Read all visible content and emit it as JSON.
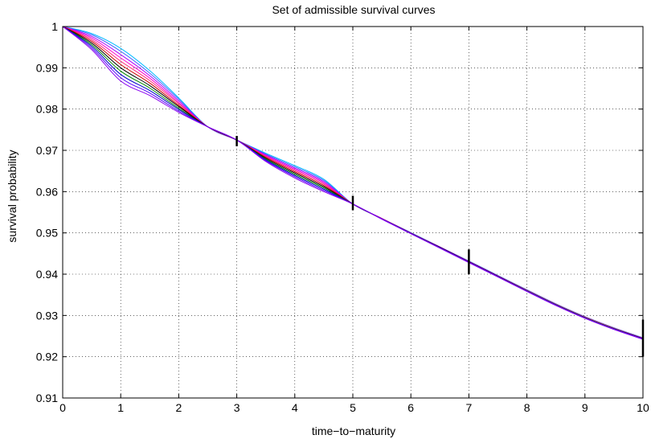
{
  "chart_data": {
    "type": "line",
    "title": "Set of admissible survival curves",
    "xlabel": "time−to−maturity",
    "ylabel": "survival probability",
    "xlim": [
      0,
      10
    ],
    "ylim": [
      0.91,
      1
    ],
    "xticks": [
      0,
      1,
      2,
      3,
      4,
      5,
      6,
      7,
      8,
      9,
      10
    ],
    "yticks": [
      0.91,
      0.92,
      0.93,
      0.94,
      0.95,
      0.96,
      0.97,
      0.98,
      0.99,
      1
    ],
    "xtick_labels": [
      "0",
      "1",
      "2",
      "3",
      "4",
      "5",
      "6",
      "7",
      "8",
      "9",
      "10"
    ],
    "ytick_labels": [
      "0.91",
      "0.92",
      "0.93",
      "0.94",
      "0.95",
      "0.96",
      "0.97",
      "0.98",
      "0.99",
      "1"
    ],
    "grid": true,
    "grid_style": "dotted",
    "x": [
      0,
      0.5,
      1,
      1.5,
      2,
      2.5,
      3,
      3.5,
      4,
      4.5,
      5,
      5.5,
      6,
      6.5,
      7,
      7.5,
      8,
      8.5,
      9,
      9.5,
      10
    ],
    "series": [
      {
        "color": "#00b8ff",
        "values": [
          1,
          0.9983,
          0.9947,
          0.9893,
          0.9827,
          0.9757,
          0.9725,
          0.9693,
          0.9663,
          0.963,
          0.957,
          0.9535,
          0.9501,
          0.9466,
          0.9432,
          0.9397,
          0.9362,
          0.9328,
          0.9297,
          0.927,
          0.9246
        ]
      },
      {
        "color": "#4466ff",
        "values": [
          1,
          0.998,
          0.994,
          0.9887,
          0.9824,
          0.9757,
          0.9725,
          0.9691,
          0.966,
          0.9627,
          0.957,
          0.9535,
          0.95,
          0.9466,
          0.9431,
          0.9396,
          0.9362,
          0.9328,
          0.9297,
          0.927,
          0.9245
        ]
      },
      {
        "color": "#aa00ff",
        "values": [
          1,
          0.9976,
          0.9932,
          0.9881,
          0.982,
          0.9757,
          0.9725,
          0.9689,
          0.9657,
          0.9624,
          0.957,
          0.9535,
          0.95,
          0.9466,
          0.9431,
          0.9396,
          0.9361,
          0.9327,
          0.9296,
          0.9269,
          0.9245
        ]
      },
      {
        "color": "#ff00cc",
        "values": [
          1,
          0.9972,
          0.9924,
          0.9875,
          0.9816,
          0.9757,
          0.9725,
          0.9687,
          0.9654,
          0.9621,
          0.957,
          0.9535,
          0.95,
          0.9465,
          0.9431,
          0.9396,
          0.9361,
          0.9327,
          0.9296,
          0.9269,
          0.9245
        ]
      },
      {
        "color": "#ff2277",
        "values": [
          1,
          0.9968,
          0.9916,
          0.9869,
          0.9813,
          0.9757,
          0.9725,
          0.9685,
          0.9651,
          0.9618,
          0.957,
          0.9535,
          0.95,
          0.9465,
          0.943,
          0.9395,
          0.9361,
          0.9327,
          0.9296,
          0.9269,
          0.9244
        ]
      },
      {
        "color": "#cc0000",
        "values": [
          1,
          0.9964,
          0.9908,
          0.9863,
          0.9809,
          0.9757,
          0.9725,
          0.9683,
          0.9648,
          0.9615,
          0.957,
          0.9534,
          0.9499,
          0.9465,
          0.943,
          0.9395,
          0.936,
          0.9326,
          0.9295,
          0.9268,
          0.9244
        ]
      },
      {
        "color": "#000000",
        "values": [
          1,
          0.996,
          0.99,
          0.9857,
          0.9806,
          0.9757,
          0.9725,
          0.9681,
          0.9645,
          0.9612,
          0.957,
          0.9534,
          0.9499,
          0.9465,
          0.943,
          0.9395,
          0.936,
          0.9326,
          0.9295,
          0.9268,
          0.9244
        ]
      },
      {
        "color": "#008800",
        "values": [
          1,
          0.9956,
          0.9892,
          0.9851,
          0.9802,
          0.9757,
          0.9725,
          0.9679,
          0.9642,
          0.9609,
          0.957,
          0.9534,
          0.9499,
          0.9464,
          0.9429,
          0.9394,
          0.936,
          0.9326,
          0.9295,
          0.9268,
          0.9243
        ]
      },
      {
        "color": "#0000cc",
        "values": [
          1,
          0.9952,
          0.9884,
          0.9845,
          0.9799,
          0.9757,
          0.9725,
          0.9677,
          0.9639,
          0.9606,
          0.957,
          0.9534,
          0.9499,
          0.9464,
          0.9429,
          0.9394,
          0.9359,
          0.9325,
          0.9294,
          0.9267,
          0.9243
        ]
      },
      {
        "color": "#5500ff",
        "values": [
          1,
          0.9948,
          0.9876,
          0.9839,
          0.9795,
          0.9757,
          0.9725,
          0.9675,
          0.9636,
          0.9603,
          0.957,
          0.9534,
          0.9498,
          0.9464,
          0.9429,
          0.9394,
          0.9359,
          0.9325,
          0.9294,
          0.9267,
          0.9243
        ]
      },
      {
        "color": "#8800ee",
        "values": [
          1,
          0.9944,
          0.9868,
          0.9833,
          0.9792,
          0.9757,
          0.9725,
          0.9673,
          0.9633,
          0.96,
          0.957,
          0.9533,
          0.9498,
          0.9463,
          0.9428,
          0.9393,
          0.9358,
          0.9324,
          0.9293,
          0.9266,
          0.9242
        ]
      }
    ],
    "error_bars": [
      {
        "x": 3,
        "low": 0.971,
        "high": 0.9735
      },
      {
        "x": 5,
        "low": 0.9555,
        "high": 0.959
      },
      {
        "x": 7,
        "low": 0.94,
        "high": 0.946
      },
      {
        "x": 10,
        "low": 0.92,
        "high": 0.929
      }
    ]
  }
}
